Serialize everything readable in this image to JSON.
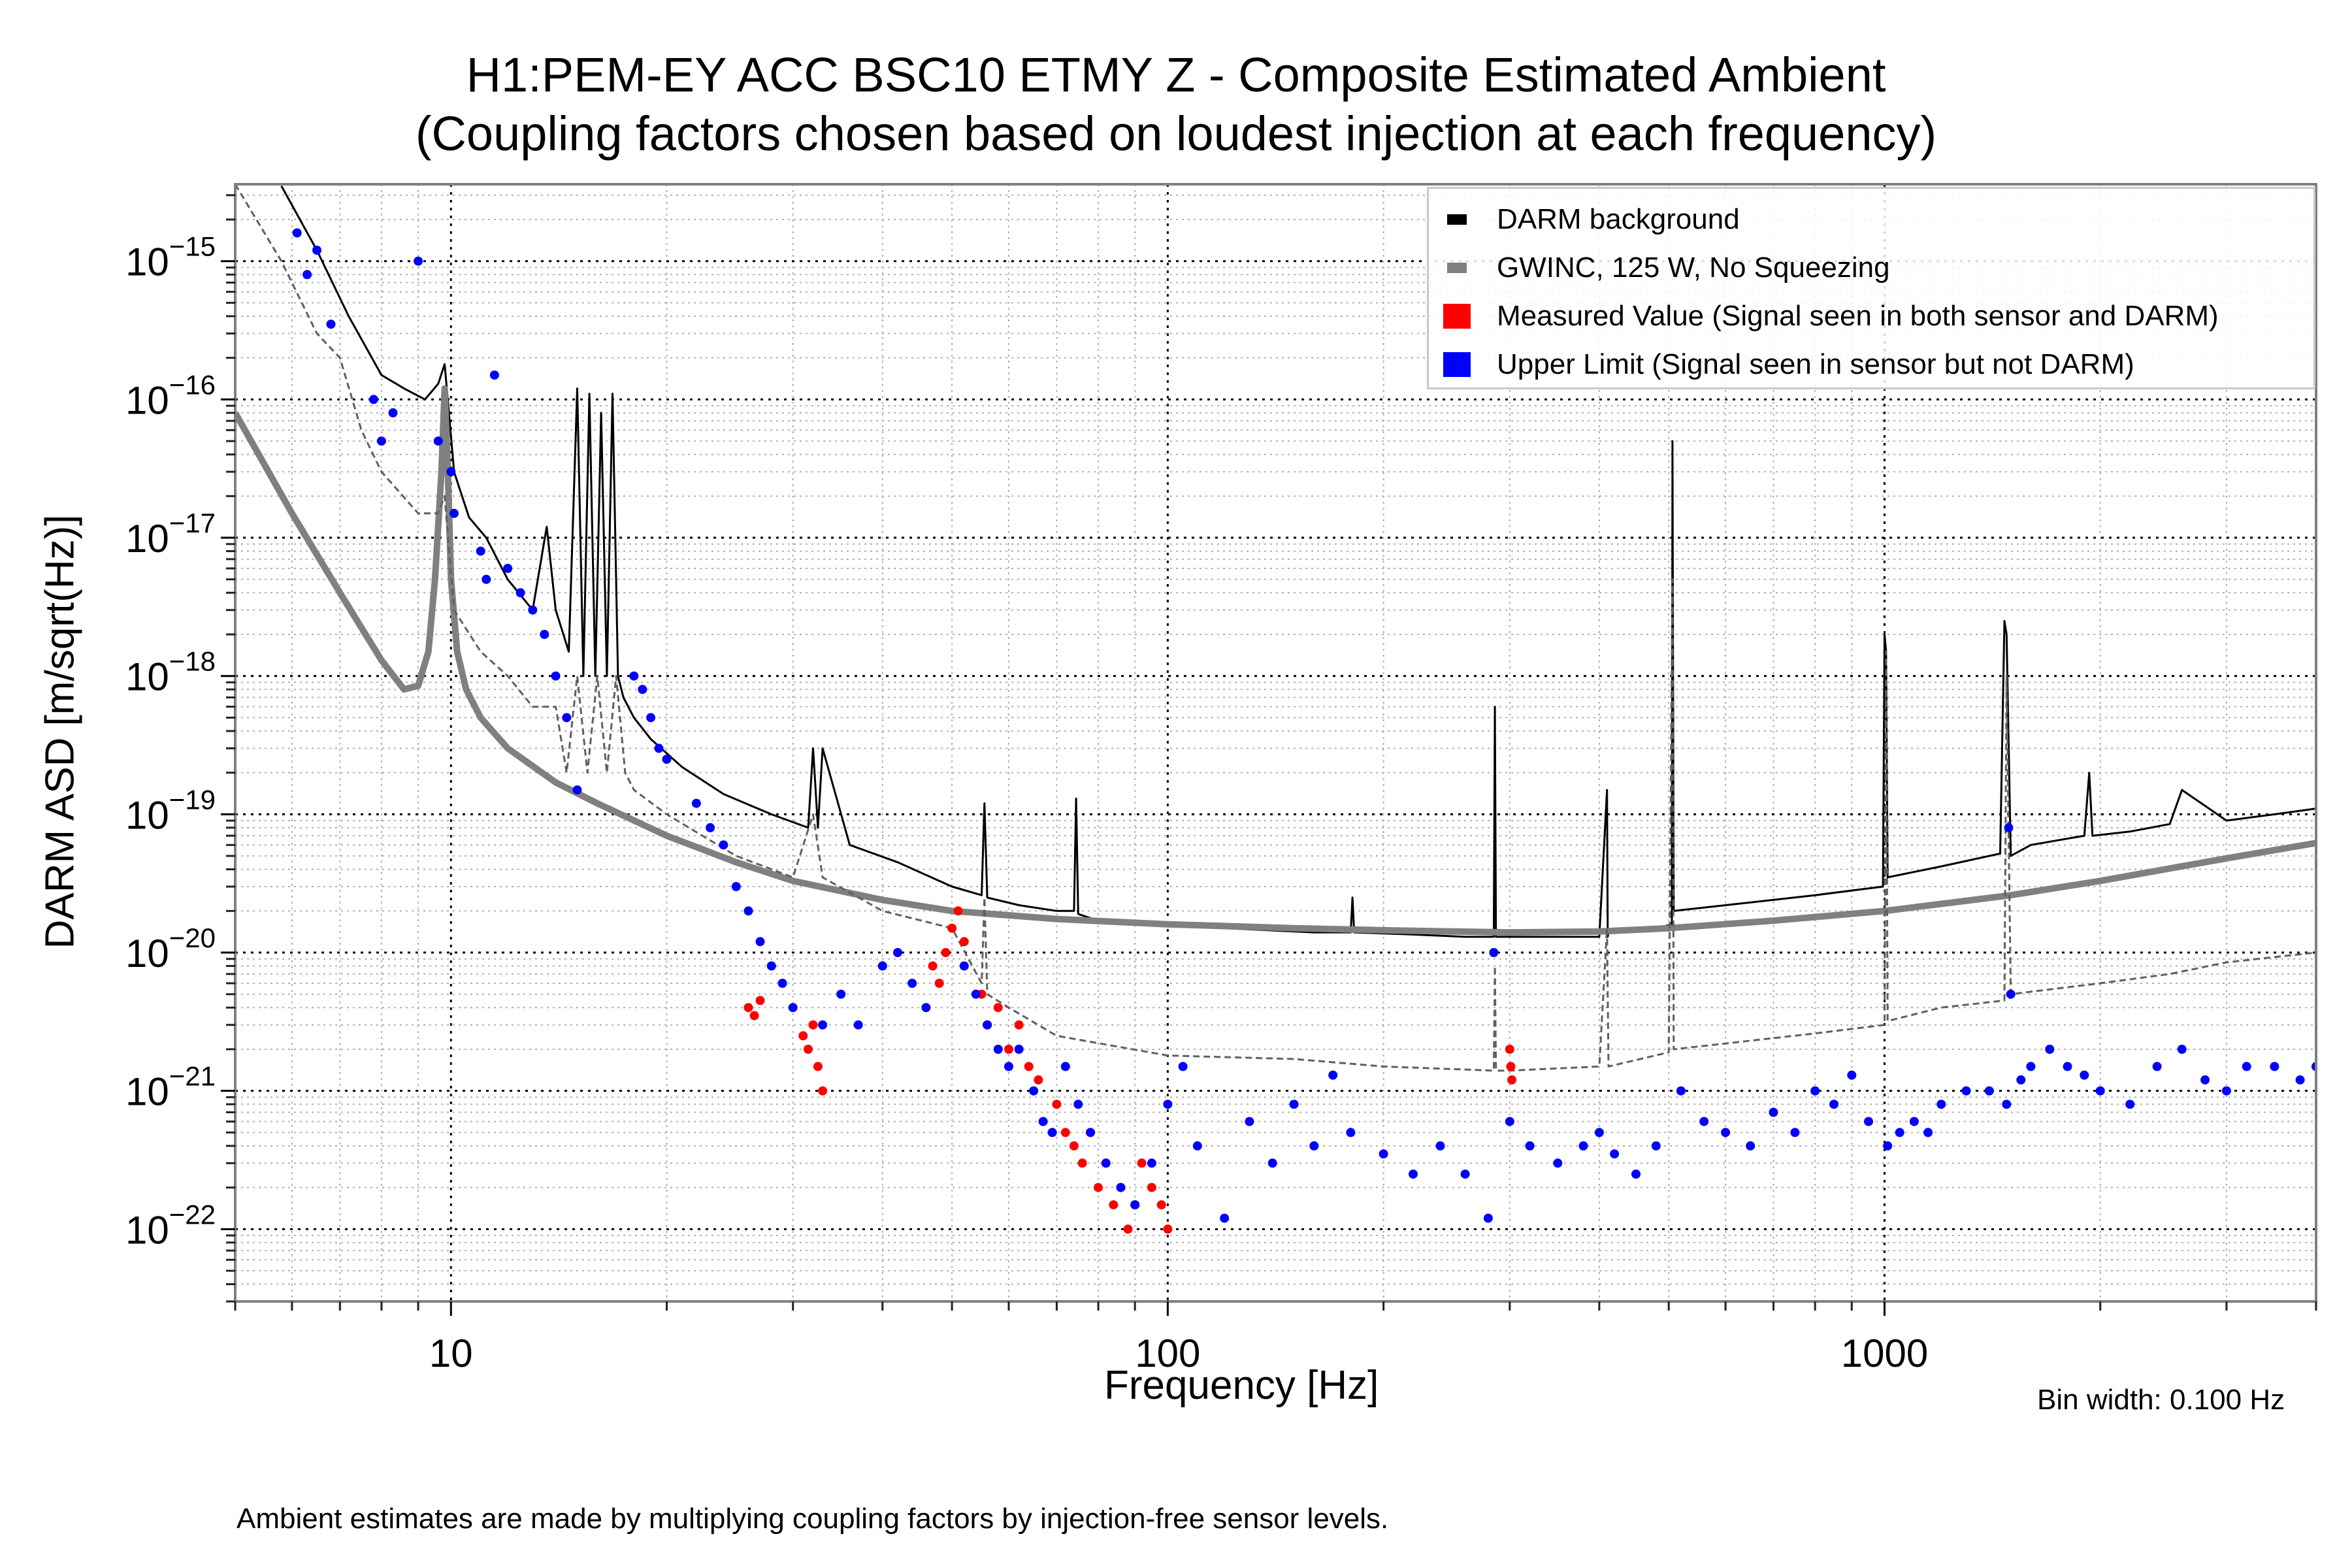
{
  "chart_data": {
    "type": "scatter",
    "title": "H1:PEM-EY ACC BSC10 ETMY Z - Composite Estimated Ambient",
    "subtitle": "(Coupling factors chosen based on loudest injection at each frequency)",
    "xlabel": "Frequency [Hz]",
    "ylabel": "DARM ASD [m/sqrt(Hz)]",
    "xscale": "log",
    "yscale": "log",
    "xlim": [
      5,
      4000
    ],
    "ylim": [
      3e-23,
      3.6e-15
    ],
    "grid": true,
    "x_ticks": [
      {
        "value": 10,
        "label": "10"
      },
      {
        "value": 100,
        "label": "100"
      },
      {
        "value": 1000,
        "label": "1000"
      }
    ],
    "y_ticks": [
      {
        "value": 1e-15,
        "base": "10",
        "exp": "−15"
      },
      {
        "value": 1e-16,
        "base": "10",
        "exp": "−16"
      },
      {
        "value": 1e-17,
        "base": "10",
        "exp": "−17"
      },
      {
        "value": 1e-18,
        "base": "10",
        "exp": "−18"
      },
      {
        "value": 1e-19,
        "base": "10",
        "exp": "−19"
      },
      {
        "value": 1e-20,
        "base": "10",
        "exp": "−20"
      },
      {
        "value": 1e-21,
        "base": "10",
        "exp": "−21"
      },
      {
        "value": 1e-22,
        "base": "10",
        "exp": "−22"
      }
    ],
    "legend_position": "top-right",
    "legend": [
      {
        "label": "DARM background",
        "color": "#000000",
        "kind": "line"
      },
      {
        "label": "GWINC, 125 W, No Squeezing",
        "color": "#808080",
        "kind": "line"
      },
      {
        "label": "Measured Value (Signal seen in both sensor and DARM)",
        "color": "#ff0000",
        "kind": "patch"
      },
      {
        "label": "Upper Limit (Signal seen in sensor but not DARM)",
        "color": "#0000ff",
        "kind": "patch"
      }
    ],
    "series": [
      {
        "name": "DARM background",
        "type": "line",
        "color": "#000000",
        "x": [
          5.8,
          6.5,
          7.2,
          8.0,
          8.6,
          9.2,
          9.6,
          9.8,
          10.1,
          10.6,
          11.2,
          12.0,
          13.0,
          13.6,
          14.0,
          14.6,
          15.0,
          15.3,
          15.6,
          15.9,
          16.2,
          16.5,
          16.8,
          17.1,
          17.4,
          18.0,
          19.0,
          21.0,
          24.0,
          28.0,
          31.5,
          32.0,
          32.5,
          33.0,
          36.0,
          42.0,
          50.0,
          55.0,
          55.5,
          56.0,
          62.0,
          70.0,
          74.0,
          74.5,
          75.0,
          80.0,
          100.0,
          120.0,
          160.0,
          180.0,
          181.0,
          182.0,
          220.0,
          260.0,
          285.0,
          286.0,
          287.0,
          300.0,
          400.0,
          410.0,
          411.0,
          412.0,
          480.0,
          505.0,
          506.0,
          507.0,
          508.0,
          600.0,
          800.0,
          995.0,
          1000.0,
          1005.0,
          1010.0,
          1200.0,
          1450.0,
          1470.0,
          1480.0,
          1500.0,
          1600.0,
          1900.0,
          1930.0,
          1950.0,
          2200.0,
          2500.0,
          2600.0,
          3000.0,
          3500.0,
          4000.0
        ],
        "y": [
          3.5e-15,
          1.2e-15,
          4e-16,
          1.5e-16,
          1.2e-16,
          1e-16,
          1.3e-16,
          1.8e-16,
          3e-17,
          1.4e-17,
          1e-17,
          5e-18,
          3e-18,
          1.2e-17,
          3e-18,
          1.5e-18,
          1.2e-16,
          1e-18,
          1.1e-16,
          1e-18,
          8e-17,
          1e-18,
          1.1e-16,
          1e-18,
          7e-19,
          5e-19,
          3.5e-19,
          2.2e-19,
          1.4e-19,
          1e-19,
          8e-20,
          3e-19,
          8e-20,
          3e-19,
          6e-20,
          4.5e-20,
          3e-20,
          2.6e-20,
          1.2e-19,
          2.5e-20,
          2.2e-20,
          2e-20,
          2e-20,
          1.3e-19,
          1.9e-20,
          1.7e-20,
          1.6e-20,
          1.5e-20,
          1.4e-20,
          1.4e-20,
          2.5e-20,
          1.4e-20,
          1.35e-20,
          1.3e-20,
          1.3e-20,
          6e-19,
          1.3e-20,
          1.3e-20,
          1.3e-20,
          1.5e-19,
          1.3e-20,
          1.4e-20,
          1.5e-20,
          1.6e-20,
          5e-17,
          1e-18,
          2e-20,
          2.2e-20,
          2.6e-20,
          3e-20,
          2e-18,
          1.5e-18,
          3.5e-20,
          4.2e-20,
          5.2e-20,
          2.5e-18,
          2e-18,
          5e-20,
          6e-20,
          7e-20,
          2e-19,
          7e-20,
          7.5e-20,
          8.5e-20,
          1.5e-19,
          9e-20,
          1e-19,
          1.1e-19
        ]
      },
      {
        "name": "GWINC, 125 W, No Squeezing",
        "type": "line",
        "color": "#808080",
        "x": [
          5.0,
          6.0,
          7.0,
          8.0,
          8.6,
          9.0,
          9.3,
          9.5,
          9.7,
          9.8,
          9.9,
          10.0,
          10.2,
          10.5,
          11.0,
          12.0,
          14.0,
          16.0,
          20.0,
          25.0,
          30.0,
          40.0,
          50.0,
          70.0,
          100.0,
          150.0,
          200.0,
          300.0,
          400.0,
          500.0,
          700.0,
          1000.0,
          1500.0,
          2000.0,
          3000.0,
          4000.0
        ],
        "y": [
          8e-17,
          1.5e-17,
          4e-18,
          1.3e-18,
          8e-19,
          8.5e-19,
          1.5e-18,
          5e-18,
          3e-17,
          1.2e-16,
          3e-17,
          5e-18,
          1.5e-18,
          8e-19,
          5e-19,
          3e-19,
          1.7e-19,
          1.2e-19,
          7e-20,
          4.5e-20,
          3.3e-20,
          2.4e-20,
          2e-20,
          1.75e-20,
          1.6e-20,
          1.5e-20,
          1.45e-20,
          1.4e-20,
          1.42e-20,
          1.5e-20,
          1.7e-20,
          2e-20,
          2.6e-20,
          3.3e-20,
          4.8e-20,
          6.2e-20
        ]
      },
      {
        "name": "GWINC (dashed, lower)",
        "type": "line",
        "color": "#606060",
        "dashed": true,
        "x": [
          5.0,
          5.8,
          6.5,
          7.0,
          7.5,
          8.0,
          9.0,
          9.6,
          9.8,
          10.1,
          11.0,
          12.0,
          13.0,
          14.0,
          14.5,
          15.0,
          15.5,
          16.0,
          16.5,
          17.0,
          17.5,
          18.0,
          20.0,
          25.0,
          30.0,
          32.0,
          33.0,
          40.0,
          50.0,
          55.0,
          55.5,
          56.0,
          60.0,
          70.0,
          100.0,
          150.0,
          200.0,
          285.0,
          286.0,
          287.0,
          300.0,
          400.0,
          410.0,
          412.0,
          500.0,
          506.0,
          508.0,
          600.0,
          800.0,
          1000.0,
          1005.0,
          1010.0,
          1200.0,
          1470.0,
          1480.0,
          1500.0,
          2000.0,
          2500.0,
          3000.0,
          4000.0
        ],
        "y": [
          3.6e-15,
          1e-15,
          3e-16,
          2e-16,
          6e-17,
          3e-17,
          1.5e-17,
          1.5e-17,
          2e-17,
          3e-18,
          1.5e-18,
          1e-18,
          6e-19,
          6e-19,
          2e-19,
          1e-18,
          2e-19,
          1e-18,
          2e-19,
          1e-18,
          2e-19,
          1.5e-19,
          1e-19,
          5e-20,
          3.5e-20,
          1e-19,
          3.5e-20,
          2e-20,
          1.5e-20,
          6e-21,
          2.5e-20,
          5e-21,
          4e-21,
          2.5e-21,
          1.8e-21,
          1.7e-21,
          1.5e-21,
          1.4e-21,
          8e-21,
          1.4e-21,
          1.4e-21,
          1.5e-21,
          1.5e-20,
          1.5e-21,
          1.9e-21,
          5e-18,
          2e-21,
          2.2e-21,
          2.6e-21,
          3e-21,
          1.5e-18,
          3.2e-21,
          4e-21,
          4.5e-21,
          1e-18,
          5e-21,
          6e-21,
          7e-21,
          8.5e-21,
          1e-20
        ]
      },
      {
        "name": "Measured Value",
        "type": "scatter",
        "color": "#ff0000",
        "x": [
          26.0,
          26.5,
          27.0,
          31.0,
          31.5,
          32.0,
          32.5,
          33.0,
          47.0,
          48.0,
          49.0,
          50.0,
          51.0,
          52.0,
          55.0,
          56.0,
          58.0,
          60.0,
          62.0,
          64.0,
          66.0,
          70.0,
          72.0,
          74.0,
          76.0,
          78.0,
          80.0,
          82.0,
          84.0,
          86.0,
          88.0,
          90.0,
          92.0,
          95.0,
          98.0,
          100.0,
          300.0,
          301.0,
          302.0
        ],
        "y": [
          4e-21,
          3.5e-21,
          4.5e-21,
          2.5e-21,
          2e-21,
          3e-21,
          1.5e-21,
          1e-21,
          8e-21,
          6e-21,
          1e-20,
          1.5e-20,
          2e-20,
          1.2e-20,
          5e-21,
          3e-21,
          4e-21,
          2e-21,
          3e-21,
          1.5e-21,
          1.2e-21,
          8e-22,
          5e-22,
          4e-22,
          3e-22,
          5e-22,
          2e-22,
          3e-22,
          1.5e-22,
          2e-22,
          1e-22,
          1.5e-22,
          3e-22,
          2e-22,
          1.5e-22,
          1e-22,
          2e-21,
          1.5e-21,
          1.2e-21
        ]
      },
      {
        "name": "Upper Limit",
        "type": "scatter",
        "color": "#0000ff",
        "x": [
          6.1,
          6.3,
          6.5,
          6.8,
          7.8,
          8.0,
          8.3,
          9.0,
          9.6,
          10.0,
          10.1,
          11.0,
          11.2,
          11.5,
          12.0,
          12.5,
          13.0,
          13.5,
          14.0,
          14.5,
          15.0,
          18.0,
          18.5,
          19.0,
          19.5,
          20.0,
          22.0,
          23.0,
          24.0,
          25.0,
          26.0,
          27.0,
          28.0,
          29.0,
          30.0,
          33.0,
          35.0,
          37.0,
          40.0,
          42.0,
          44.0,
          46.0,
          52.0,
          54.0,
          56.0,
          58.0,
          60.0,
          62.0,
          65.0,
          67.0,
          69.0,
          72.0,
          75.0,
          78.0,
          82.0,
          86.0,
          90.0,
          95.0,
          100.0,
          105.0,
          110.0,
          120.0,
          130.0,
          140.0,
          150.0,
          160.0,
          170.0,
          180.0,
          200.0,
          220.0,
          240.0,
          260.0,
          280.0,
          285.0,
          300.0,
          320.0,
          350.0,
          380.0,
          400.0,
          420.0,
          450.0,
          480.0,
          520.0,
          560.0,
          600.0,
          650.0,
          700.0,
          750.0,
          800.0,
          850.0,
          900.0,
          950.0,
          1010.0,
          1050.0,
          1100.0,
          1150.0,
          1200.0,
          1300.0,
          1400.0,
          1480.0,
          1490.0,
          1500.0,
          1550.0,
          1600.0,
          1700.0,
          1800.0,
          1900.0,
          2000.0,
          2200.0,
          2400.0,
          2600.0,
          2800.0,
          3000.0,
          3200.0,
          3500.0,
          3800.0,
          4000.0
        ],
        "y": [
          1.6e-15,
          8e-16,
          1.2e-15,
          3.5e-16,
          1e-16,
          5e-17,
          8e-17,
          1e-15,
          5e-17,
          3e-17,
          1.5e-17,
          8e-18,
          5e-18,
          1.5e-16,
          6e-18,
          4e-18,
          3e-18,
          2e-18,
          1e-18,
          5e-19,
          1.5e-19,
          1e-18,
          8e-19,
          5e-19,
          3e-19,
          2.5e-19,
          1.2e-19,
          8e-20,
          6e-20,
          3e-20,
          2e-20,
          1.2e-20,
          8e-21,
          6e-21,
          4e-21,
          3e-21,
          5e-21,
          3e-21,
          8e-21,
          1e-20,
          6e-21,
          4e-21,
          8e-21,
          5e-21,
          3e-21,
          2e-21,
          1.5e-21,
          2e-21,
          1e-21,
          6e-22,
          5e-22,
          1.5e-21,
          8e-22,
          5e-22,
          3e-22,
          2e-22,
          1.5e-22,
          3e-22,
          8e-22,
          1.5e-21,
          4e-22,
          1.2e-22,
          6e-22,
          3e-22,
          8e-22,
          4e-22,
          1.3e-21,
          5e-22,
          3.5e-22,
          2.5e-22,
          4e-22,
          2.5e-22,
          1.2e-22,
          1e-20,
          6e-22,
          4e-22,
          3e-22,
          4e-22,
          5e-22,
          3.5e-22,
          2.5e-22,
          4e-22,
          1e-21,
          6e-22,
          5e-22,
          4e-22,
          7e-22,
          5e-22,
          1e-21,
          8e-22,
          1.3e-21,
          6e-22,
          4e-22,
          5e-22,
          6e-22,
          5e-22,
          8e-22,
          1e-21,
          1e-21,
          8e-22,
          8e-20,
          5e-21,
          1.2e-21,
          1.5e-21,
          2e-21,
          1.5e-21,
          1.3e-21,
          1e-21,
          8e-22,
          1.5e-21,
          2e-21,
          1.2e-21,
          1e-21,
          1.5e-21,
          1.5e-21,
          1.2e-21,
          1.5e-21
        ]
      }
    ],
    "annotations": [
      "Bin width: 0.100 Hz"
    ]
  },
  "footnote": "Ambient estimates are made by multiplying coupling factors by injection-free sensor levels.",
  "bin_width": "Bin width: 0.100 Hz"
}
